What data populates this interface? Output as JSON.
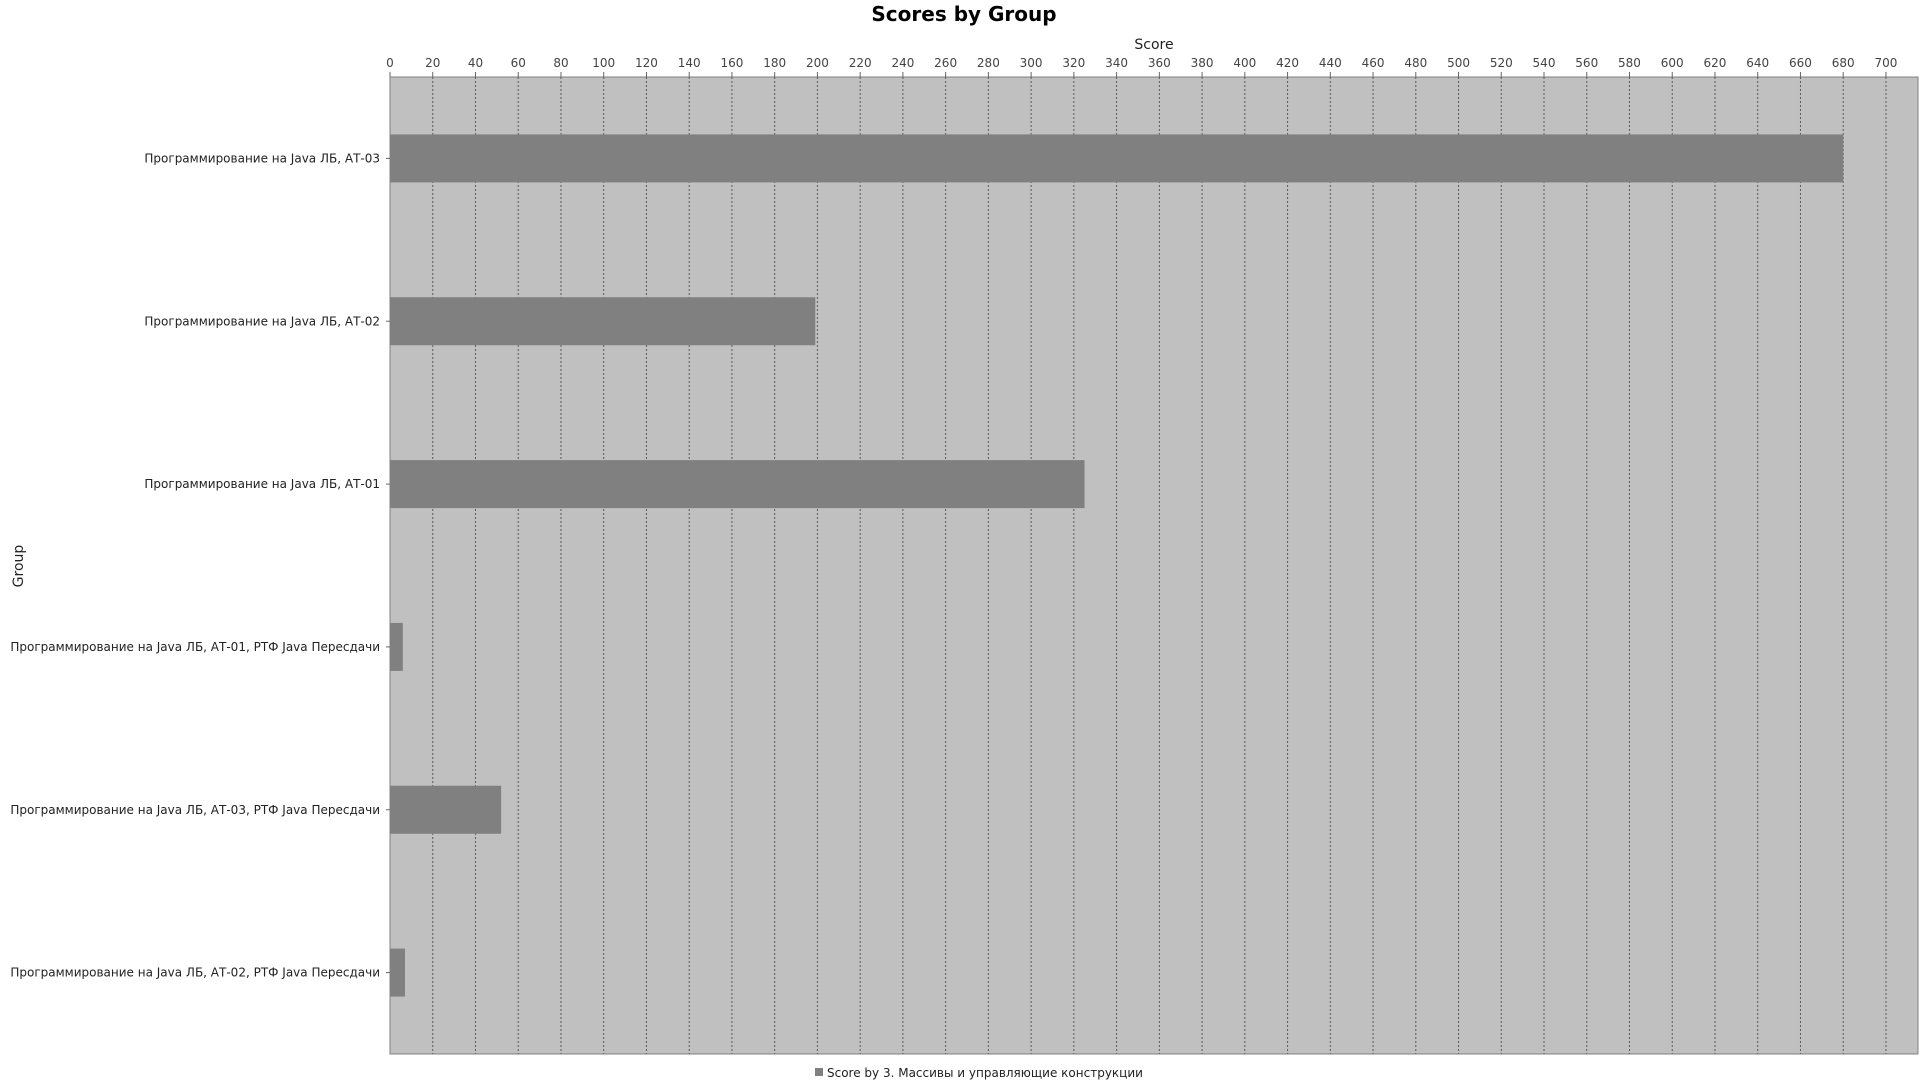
{
  "chart_data": {
    "type": "bar",
    "orientation": "horizontal",
    "title": "Scores by Group",
    "xlabel": "Score",
    "ylabel": "Group",
    "xlim": [
      0,
      715
    ],
    "x_ticks": [
      0,
      20,
      40,
      60,
      80,
      100,
      120,
      140,
      160,
      180,
      200,
      220,
      240,
      260,
      280,
      300,
      320,
      340,
      360,
      380,
      400,
      420,
      440,
      460,
      480,
      500,
      520,
      540,
      560,
      580,
      600,
      620,
      640,
      660,
      680,
      700
    ],
    "x_axis_position": "top",
    "grid": true,
    "legend_position": "bottom-center",
    "categories": [
      "Программирование на Java ЛБ, АТ-03",
      "Программирование на Java ЛБ, АТ-02",
      "Программирование на Java ЛБ, АТ-01",
      "Программирование на Java ЛБ, АТ-01, РТФ Java Пересдачи",
      "Программирование на Java ЛБ, АТ-03, РТФ Java Пересдачи",
      "Программирование на Java ЛБ, АТ-02, РТФ Java Пересдачи"
    ],
    "series": [
      {
        "name": "Score by 3. Массивы и управляющие конструкции",
        "color": "#808080",
        "values": [
          680,
          199,
          325,
          6,
          52,
          7
        ]
      }
    ],
    "plot_background": "#c0c0c0"
  }
}
